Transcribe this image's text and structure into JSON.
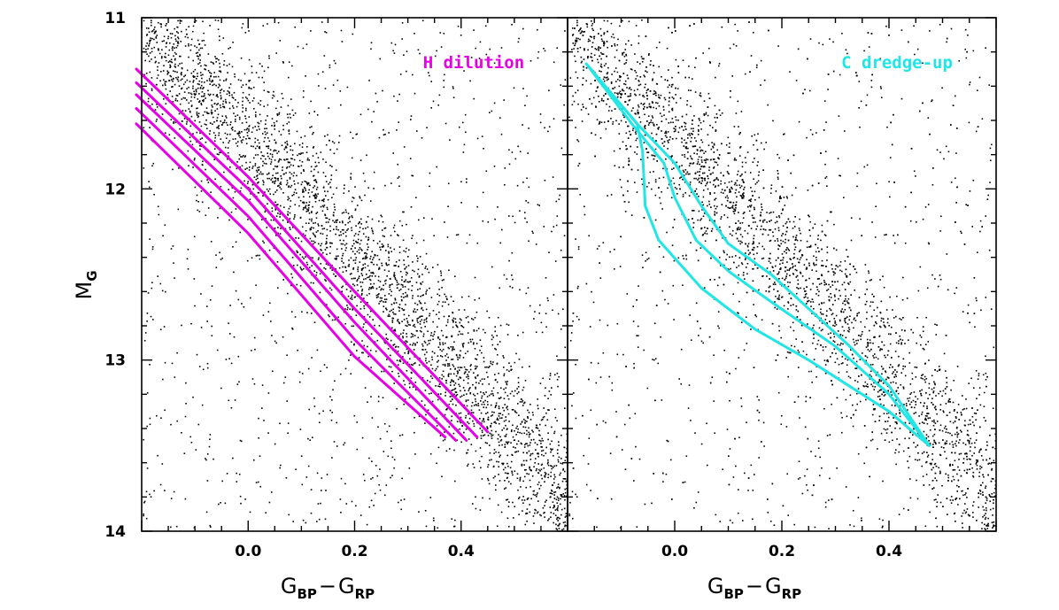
{
  "chart_data": [
    {
      "type": "scatter",
      "panel": "left",
      "annotation": "H dilution",
      "annotation_color": "#e600e6",
      "xlabel": {
        "main1": "G",
        "sub1": "BP",
        "dash": "−",
        "main2": "G",
        "sub2": "RP"
      },
      "ylabel": {
        "main": "M",
        "sub": "G"
      },
      "xlim": [
        -0.2,
        0.6
      ],
      "ylim": [
        14,
        11
      ],
      "y_inverted": true,
      "x_ticks": [
        "0.0",
        "0.2",
        "0.4"
      ],
      "x_tick_values": [
        0.0,
        0.2,
        0.4
      ],
      "y_ticks": [
        "11",
        "12",
        "13",
        "14"
      ],
      "y_tick_values": [
        11,
        12,
        13,
        14
      ],
      "grid": false,
      "scatter_color": "#000000",
      "scatter_description_density": 4500,
      "ridge": [
        [
          -0.2,
          11.05
        ],
        [
          0.0,
          11.72
        ],
        [
          0.2,
          12.38
        ],
        [
          0.4,
          13.08
        ],
        [
          0.6,
          13.82
        ]
      ],
      "series": [
        {
          "values": [
            [
              -0.21,
              11.3
            ],
            [
              0.0,
              11.93
            ],
            [
              0.2,
              12.6
            ],
            [
              0.45,
              13.42
            ]
          ]
        },
        {
          "values": [
            [
              -0.21,
              11.38
            ],
            [
              0.0,
              12.0
            ],
            [
              0.2,
              12.7
            ],
            [
              0.43,
              13.45
            ]
          ]
        },
        {
          "values": [
            [
              -0.21,
              11.45
            ],
            [
              0.0,
              12.07
            ],
            [
              0.2,
              12.78
            ],
            [
              0.41,
              13.47
            ]
          ]
        },
        {
          "values": [
            [
              -0.21,
              11.53
            ],
            [
              0.0,
              12.16
            ],
            [
              0.2,
              12.88
            ],
            [
              0.39,
              13.47
            ]
          ]
        },
        {
          "values": [
            [
              -0.21,
              11.62
            ],
            [
              0.0,
              12.26
            ],
            [
              0.2,
              12.98
            ],
            [
              0.37,
              13.45
            ]
          ]
        }
      ],
      "series_color": "#e600e6"
    },
    {
      "type": "scatter",
      "panel": "right",
      "annotation": "C dredge-up",
      "annotation_color": "#22e5e5",
      "xlabel": {
        "main1": "G",
        "sub1": "BP",
        "dash": "−",
        "main2": "G",
        "sub2": "RP"
      },
      "xlim": [
        -0.2,
        0.6
      ],
      "ylim": [
        14,
        11
      ],
      "y_inverted": true,
      "x_ticks": [
        "0.0",
        "0.2",
        "0.4"
      ],
      "x_tick_values": [
        0.0,
        0.2,
        0.4
      ],
      "grid": false,
      "scatter_color": "#000000",
      "ridge": [
        [
          -0.2,
          11.05
        ],
        [
          0.0,
          11.72
        ],
        [
          0.2,
          12.38
        ],
        [
          0.4,
          13.08
        ],
        [
          0.6,
          13.82
        ]
      ],
      "series": [
        {
          "values": [
            [
              -0.165,
              11.27
            ],
            [
              -0.07,
              11.62
            ],
            [
              -0.06,
              11.78
            ],
            [
              -0.055,
              12.1
            ],
            [
              -0.03,
              12.3
            ],
            [
              0.05,
              12.58
            ],
            [
              0.15,
              12.82
            ],
            [
              0.25,
              13.0
            ],
            [
              0.4,
              13.3
            ],
            [
              0.475,
              13.5
            ]
          ]
        },
        {
          "values": [
            [
              -0.165,
              11.27
            ],
            [
              -0.08,
              11.62
            ],
            [
              -0.02,
              11.85
            ],
            [
              0.0,
              12.05
            ],
            [
              0.04,
              12.3
            ],
            [
              0.1,
              12.48
            ],
            [
              0.18,
              12.66
            ],
            [
              0.3,
              12.92
            ],
            [
              0.4,
              13.2
            ],
            [
              0.475,
              13.5
            ]
          ]
        },
        {
          "values": [
            [
              -0.165,
              11.27
            ],
            [
              -0.07,
              11.62
            ],
            [
              0.0,
              11.85
            ],
            [
              0.05,
              12.1
            ],
            [
              0.1,
              12.32
            ],
            [
              0.18,
              12.5
            ],
            [
              0.25,
              12.7
            ],
            [
              0.32,
              12.9
            ],
            [
              0.4,
              13.15
            ],
            [
              0.475,
              13.5
            ]
          ]
        }
      ],
      "series_color": "#22e5e5"
    }
  ]
}
